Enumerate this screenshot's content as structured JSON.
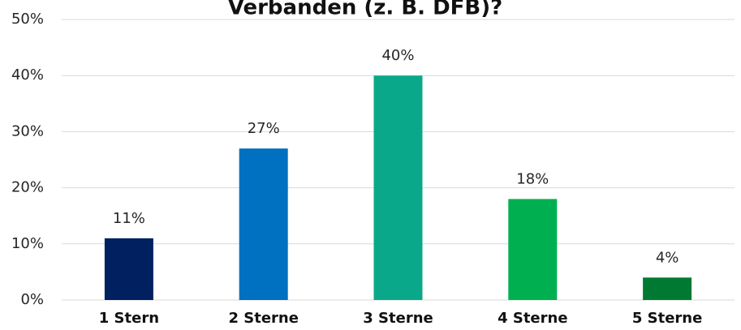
{
  "chart_data": {
    "type": "bar",
    "title": "Verbanden (z. B. DFB)?",
    "categories": [
      "1 Stern",
      "2 Sterne",
      "3 Sterne",
      "4 Sterne",
      "5 Sterne"
    ],
    "values": [
      11,
      27,
      40,
      18,
      4
    ],
    "value_labels": [
      "11%",
      "27%",
      "40%",
      "18%",
      "4%"
    ],
    "colors": [
      "#002060",
      "#0070c0",
      "#0aa88a",
      "#00b050",
      "#007a33"
    ],
    "ylim": [
      0,
      50
    ],
    "yticks": [
      {
        "value": 0,
        "label": "0%"
      },
      {
        "value": 10,
        "label": "10%"
      },
      {
        "value": 20,
        "label": "20%"
      },
      {
        "value": 30,
        "label": "30%"
      },
      {
        "value": 40,
        "label": "40%"
      },
      {
        "value": 50,
        "label": "50%"
      }
    ],
    "grid": true
  }
}
